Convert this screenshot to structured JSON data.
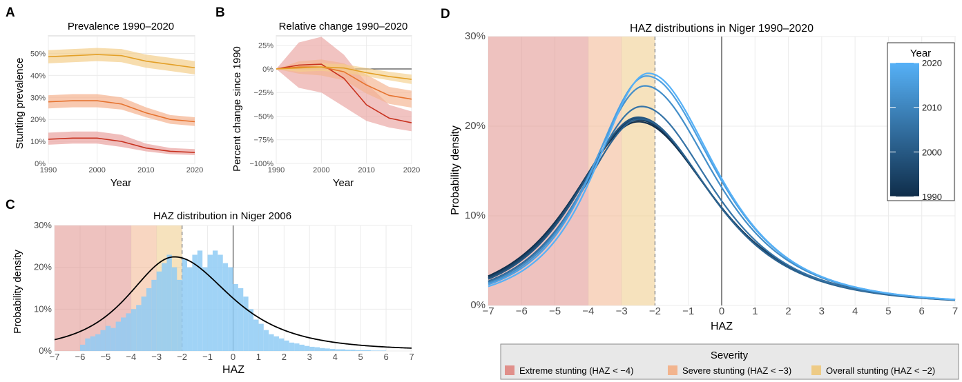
{
  "colors": {
    "extreme": "#e08f8a",
    "severe": "#f2b48e",
    "overall": "#eecb86",
    "line_extreme": "#c8321f",
    "line_severe": "#e6732f",
    "line_overall": "#e3a028",
    "hist": "#8fcbf5",
    "year_low": "#0f2d4a",
    "year_high": "#56b1f7",
    "grid": "#ebebeb",
    "panel_border": "#d0d0d0"
  },
  "panels": {
    "A": {
      "tag": "A",
      "title": "Prevalence 1990–2020",
      "xlabel": "Year",
      "ylabel": "Stunting prevalence",
      "xticks": [
        "1990",
        "2000",
        "2010",
        "2020"
      ],
      "yticks": [
        "0%",
        "10%",
        "20%",
        "30%",
        "40%",
        "50%"
      ]
    },
    "B": {
      "tag": "B",
      "title": "Relative change 1990–2020",
      "xlabel": "Year",
      "ylabel": "Percent change since 1990",
      "xticks": [
        "1990",
        "2000",
        "2010",
        "2020"
      ],
      "yticks": [
        "−100%",
        "−75%",
        "−50%",
        "−25%",
        "0%",
        "25%"
      ]
    },
    "C": {
      "tag": "C",
      "title": "HAZ distribution in Niger 2006",
      "xlabel": "HAZ",
      "ylabel": "Probability density",
      "xticks": [
        "−7",
        "−6",
        "−5",
        "−4",
        "−3",
        "−2",
        "−1",
        "0",
        "1",
        "2",
        "3",
        "4",
        "5",
        "6",
        "7"
      ],
      "yticks": [
        "0%",
        "10%",
        "20%",
        "30%"
      ]
    },
    "D": {
      "tag": "D",
      "title": "HAZ distributions in Niger 1990–2020",
      "xlabel": "HAZ",
      "ylabel": "Probability density",
      "xticks": [
        "−7",
        "−6",
        "−5",
        "−4",
        "−3",
        "−2",
        "−1",
        "0",
        "1",
        "2",
        "3",
        "4",
        "5",
        "6",
        "7"
      ],
      "yticks": [
        "0%",
        "10%",
        "20%",
        "30%"
      ],
      "colorbar_title": "Year",
      "colorbar_ticks": [
        "1990",
        "2000",
        "2010",
        "2020"
      ]
    }
  },
  "legend": {
    "title": "Severity",
    "items": [
      {
        "label": "Extreme stunting (HAZ < −4)",
        "color": "#e08f8a"
      },
      {
        "label": "Severe stunting (HAZ < −3)",
        "color": "#f2b48e"
      },
      {
        "label": "Overall stunting (HAZ < −2)",
        "color": "#eecb86"
      }
    ]
  },
  "chart_data": [
    {
      "panel": "A",
      "type": "line",
      "x": [
        1990,
        1995,
        2000,
        2005,
        2010,
        2015,
        2020
      ],
      "xlim": [
        1990,
        2020
      ],
      "ylim": [
        0,
        0.58
      ],
      "series": [
        {
          "severity": "overall",
          "values": [
            0.485,
            0.49,
            0.495,
            0.49,
            0.465,
            0.45,
            0.435
          ],
          "lower": [
            0.455,
            0.46,
            0.465,
            0.46,
            0.435,
            0.42,
            0.405
          ],
          "upper": [
            0.515,
            0.52,
            0.525,
            0.52,
            0.495,
            0.48,
            0.465
          ]
        },
        {
          "severity": "severe",
          "values": [
            0.28,
            0.285,
            0.285,
            0.27,
            0.23,
            0.2,
            0.19
          ],
          "lower": [
            0.25,
            0.255,
            0.255,
            0.245,
            0.21,
            0.18,
            0.17
          ],
          "upper": [
            0.31,
            0.315,
            0.315,
            0.3,
            0.255,
            0.22,
            0.21
          ]
        },
        {
          "severity": "extreme",
          "values": [
            0.11,
            0.115,
            0.115,
            0.1,
            0.07,
            0.055,
            0.05
          ],
          "lower": [
            0.085,
            0.09,
            0.09,
            0.075,
            0.055,
            0.042,
            0.038
          ],
          "upper": [
            0.14,
            0.145,
            0.145,
            0.13,
            0.09,
            0.07,
            0.065
          ]
        }
      ]
    },
    {
      "panel": "B",
      "type": "line",
      "x": [
        1990,
        1995,
        2000,
        2005,
        2010,
        2015,
        2020
      ],
      "xlim": [
        1990,
        2020
      ],
      "ylim": [
        -1.0,
        0.35
      ],
      "series": [
        {
          "severity": "overall",
          "values": [
            0,
            0.01,
            0.02,
            0.01,
            -0.04,
            -0.08,
            -0.11
          ],
          "lower": [
            0,
            -0.03,
            -0.02,
            -0.04,
            -0.08,
            -0.12,
            -0.16
          ],
          "upper": [
            0,
            0.04,
            0.06,
            0.05,
            0.01,
            -0.03,
            -0.06
          ]
        },
        {
          "severity": "severe",
          "values": [
            0,
            0.02,
            0.02,
            -0.03,
            -0.17,
            -0.28,
            -0.32
          ],
          "lower": [
            0,
            -0.05,
            -0.07,
            -0.12,
            -0.26,
            -0.37,
            -0.41
          ],
          "upper": [
            0,
            0.08,
            0.1,
            0.06,
            -0.06,
            -0.19,
            -0.23
          ]
        },
        {
          "severity": "extreme",
          "values": [
            0,
            0.04,
            0.05,
            -0.1,
            -0.38,
            -0.52,
            -0.57
          ],
          "lower": [
            0,
            -0.2,
            -0.25,
            -0.4,
            -0.55,
            -0.62,
            -0.66
          ],
          "upper": [
            0,
            0.28,
            0.34,
            0.15,
            -0.15,
            -0.38,
            -0.45
          ]
        }
      ]
    },
    {
      "panel": "C",
      "type": "bar",
      "xlim": [
        -7,
        7
      ],
      "ylim": [
        0,
        0.3
      ],
      "bin_width": 0.2,
      "x_start": -6.0,
      "values": [
        0.015,
        0.03,
        0.035,
        0.04,
        0.05,
        0.06,
        0.055,
        0.07,
        0.08,
        0.09,
        0.1,
        0.11,
        0.13,
        0.15,
        0.17,
        0.19,
        0.21,
        0.23,
        0.2,
        0.17,
        0.22,
        0.2,
        0.23,
        0.24,
        0.2,
        0.23,
        0.24,
        0.23,
        0.21,
        0.2,
        0.16,
        0.15,
        0.13,
        0.1,
        0.075,
        0.065,
        0.05,
        0.04,
        0.035,
        0.03,
        0.025,
        0.02,
        0.018,
        0.015,
        0.012,
        0.01,
        0.009,
        0.007,
        0.006,
        0.005,
        0.004,
        0.004,
        0.003,
        0.003,
        0.002,
        0.002,
        0.002,
        0.001,
        0.001,
        0.001
      ],
      "fit": {
        "label": "fitted density",
        "mode": -2.3,
        "peak": 0.225
      }
    },
    {
      "panel": "D",
      "type": "line",
      "xlim": [
        -7,
        7
      ],
      "ylim": [
        0,
        0.3
      ],
      "series": [
        {
          "year": 1990,
          "mode": -2.5,
          "peak": 0.205
        },
        {
          "year": 1993,
          "mode": -2.5,
          "peak": 0.207
        },
        {
          "year": 1996,
          "mode": -2.5,
          "peak": 0.209
        },
        {
          "year": 1999,
          "mode": -2.5,
          "peak": 0.21
        },
        {
          "year": 2002,
          "mode": -2.45,
          "peak": 0.208
        },
        {
          "year": 2006,
          "mode": -2.4,
          "peak": 0.222
        },
        {
          "year": 2012,
          "mode": -2.3,
          "peak": 0.245
        },
        {
          "year": 2016,
          "mode": -2.25,
          "peak": 0.256
        },
        {
          "year": 2020,
          "mode": -2.2,
          "peak": 0.259
        }
      ]
    }
  ]
}
